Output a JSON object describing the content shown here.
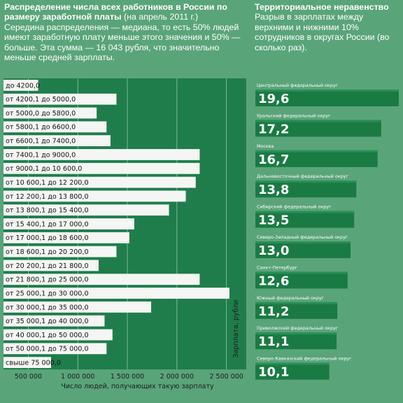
{
  "left": {
    "title": "Распределение числа всех работников в России по размеру заработной платы",
    "title_note": " (на апрель 2011 г.)",
    "description": "Середина распределения — медиана, то есть 50% людей имеют заработную плату меньше этого значения и 50% — больше. Эта сумма — 16 043 рубля, что значительно меньше средней зарплаты."
  },
  "right": {
    "title": "Территориальное неравенство",
    "description": "Разрыв в зарплатах между верхними и нижними 10% сотрудников в округах России (во сколько раз)."
  },
  "colors": {
    "background": "#5aa47a",
    "panel_dark": "#1f7d4b",
    "panel_band": "#2a8a56",
    "bar_white": "#f4f6f4",
    "region_bar": "#1a7a44",
    "region_bar_light": "#34a062",
    "grid": "#8fc8a3"
  },
  "chart_data": [
    {
      "type": "bar",
      "orientation": "horizontal",
      "title": "Распределение числа всех работников в России по размеру заработной платы",
      "xlabel": "Число людей, получающих такую зарплату",
      "ylabel": "Зарплата, рубли",
      "xlim": [
        250000,
        2700000
      ],
      "xticks": [
        "500 000",
        "1 000 000",
        "1 500 000",
        "2 000 000",
        "2 500 000"
      ],
      "xtick_values": [
        500000,
        1000000,
        1500000,
        2000000,
        2500000
      ],
      "grid": true,
      "categories": [
        "до 4200,0",
        "от 4200,1 до 5000,0",
        "от 5000,0 до 5800,0",
        "от 5800,1 до 6600,0",
        "от 6600,1 до 7400,0",
        "от 7400,1 до 9000,0",
        "от 9000,1 до 10 600,0",
        "от 10 600,1 до 12 200,0",
        "от 12 200,1 до 13 800,0",
        "от 13 800,1 до 15 400,0",
        "от 15 400,1 до 17 000,0",
        "от 17 000,1 до 18 600,0",
        "от 18 600,1 до 20 200,0",
        "от 20 200,1 до 21 800,0",
        "от 21 800,1 до 25 000,0",
        "от 25 000,1 до 30 000,0",
        "от 30 000,1 до 35 000,0",
        "от 35 000,1 до 40 000,0",
        "от 40 000,1 до 50 000,0",
        "от 50 000,1 до 75 000,0",
        "свыше 75 000,0"
      ],
      "values": [
        600000,
        1390000,
        1190000,
        1290000,
        1330000,
        2230000,
        2230000,
        2190000,
        2090000,
        1920000,
        1570000,
        1520000,
        1390000,
        1210000,
        2230000,
        2530000,
        1740000,
        1270000,
        1350000,
        1290000,
        730000
      ]
    },
    {
      "type": "bar",
      "orientation": "horizontal",
      "title": "Территориальное неравенство",
      "categories": [
        "Центральный федеральный округ",
        "Уральский федеральный округ",
        "Москва",
        "Дальневосточный федеральный округ",
        "Сибирский федеральный округ",
        "Северо-Западный федеральный округ",
        "Санкт-Петербург",
        "Южный федеральный округ",
        "Приволжский федеральный округ",
        "Северо-Кавказский федеральный округ"
      ],
      "values": [
        19.6,
        17.2,
        16.7,
        13.8,
        13.5,
        13.0,
        12.6,
        11.2,
        11.1,
        10.1
      ],
      "value_labels": [
        "19,6",
        "17,2",
        "16,7",
        "13,8",
        "13,5",
        "13,0",
        "12,6",
        "11,2",
        "11,1",
        "10,1"
      ]
    }
  ]
}
